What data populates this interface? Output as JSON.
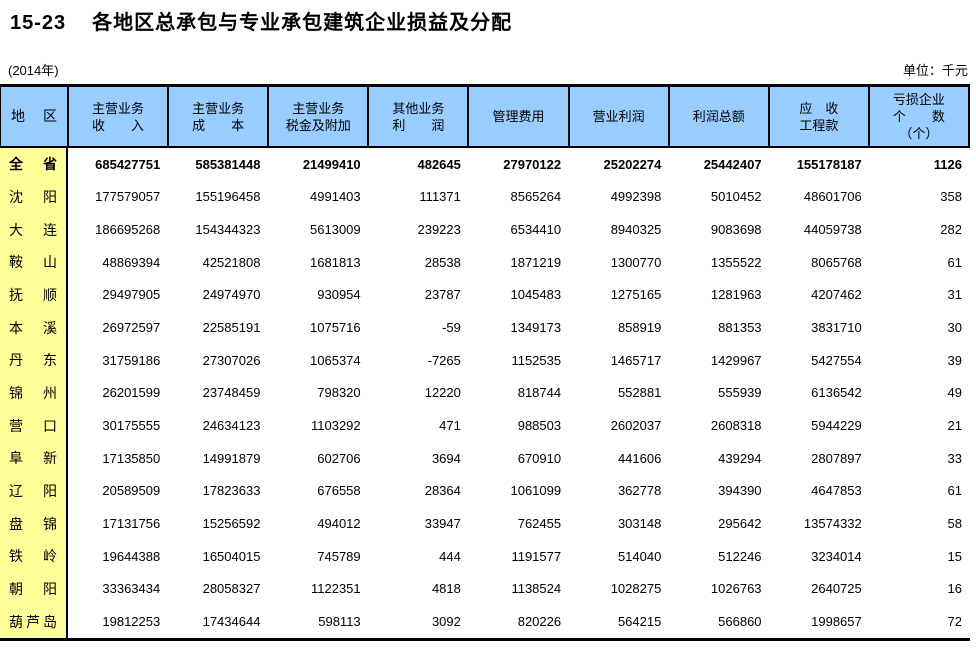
{
  "title": {
    "code": "15-23",
    "text": "各地区总承包与专业承包建筑企业损益及分配"
  },
  "notes": {
    "year": "(2014年)",
    "unit": "单位：千元"
  },
  "colors": {
    "header_bg": "#99CCFF",
    "region_bg": "#FFFF99",
    "rule": "#000000"
  },
  "table": {
    "region_header": "地区",
    "column_headers": [
      [
        "主营业务",
        "收　　入"
      ],
      [
        "主营业务",
        "成　　本"
      ],
      [
        "主营业务",
        "税金及附加"
      ],
      [
        "其他业务",
        "利　　润"
      ],
      [
        "管理费用"
      ],
      [
        "营业利润"
      ],
      [
        "利润总额"
      ],
      [
        "应　收",
        "工程款"
      ],
      [
        "亏损企业",
        "个　　数",
        "（个）"
      ]
    ],
    "rows": [
      {
        "region": "全省",
        "bold": true,
        "values": [
          "685427751",
          "585381448",
          "21499410",
          "482645",
          "27970122",
          "25202274",
          "25442407",
          "155178187",
          "1126"
        ]
      },
      {
        "region": "沈阳",
        "bold": false,
        "values": [
          "177579057",
          "155196458",
          "4991403",
          "111371",
          "8565264",
          "4992398",
          "5010452",
          "48601706",
          "358"
        ]
      },
      {
        "region": "大连",
        "bold": false,
        "values": [
          "186695268",
          "154344323",
          "5613009",
          "239223",
          "6534410",
          "8940325",
          "9083698",
          "44059738",
          "282"
        ]
      },
      {
        "region": "鞍山",
        "bold": false,
        "values": [
          "48869394",
          "42521808",
          "1681813",
          "28538",
          "1871219",
          "1300770",
          "1355522",
          "8065768",
          "61"
        ]
      },
      {
        "region": "抚顺",
        "bold": false,
        "values": [
          "29497905",
          "24974970",
          "930954",
          "23787",
          "1045483",
          "1275165",
          "1281963",
          "4207462",
          "31"
        ]
      },
      {
        "region": "本溪",
        "bold": false,
        "values": [
          "26972597",
          "22585191",
          "1075716",
          "-59",
          "1349173",
          "858919",
          "881353",
          "3831710",
          "30"
        ]
      },
      {
        "region": "丹东",
        "bold": false,
        "values": [
          "31759186",
          "27307026",
          "1065374",
          "-7265",
          "1152535",
          "1465717",
          "1429967",
          "5427554",
          "39"
        ]
      },
      {
        "region": "锦州",
        "bold": false,
        "values": [
          "26201599",
          "23748459",
          "798320",
          "12220",
          "818744",
          "552881",
          "555939",
          "6136542",
          "49"
        ]
      },
      {
        "region": "营口",
        "bold": false,
        "values": [
          "30175555",
          "24634123",
          "1103292",
          "471",
          "988503",
          "2602037",
          "2608318",
          "5944229",
          "21"
        ]
      },
      {
        "region": "阜新",
        "bold": false,
        "values": [
          "17135850",
          "14991879",
          "602706",
          "3694",
          "670910",
          "441606",
          "439294",
          "2807897",
          "33"
        ]
      },
      {
        "region": "辽阳",
        "bold": false,
        "values": [
          "20589509",
          "17823633",
          "676558",
          "28364",
          "1061099",
          "362778",
          "394390",
          "4647853",
          "61"
        ]
      },
      {
        "region": "盘锦",
        "bold": false,
        "values": [
          "17131756",
          "15256592",
          "494012",
          "33947",
          "762455",
          "303148",
          "295642",
          "13574332",
          "58"
        ]
      },
      {
        "region": "铁岭",
        "bold": false,
        "values": [
          "19644388",
          "16504015",
          "745789",
          "444",
          "1191577",
          "514040",
          "512246",
          "3234014",
          "15"
        ]
      },
      {
        "region": "朝阳",
        "bold": false,
        "values": [
          "33363434",
          "28058327",
          "1122351",
          "4818",
          "1138524",
          "1028275",
          "1026763",
          "2640725",
          "16"
        ]
      },
      {
        "region": "葫芦岛",
        "bold": false,
        "values": [
          "19812253",
          "17434644",
          "598113",
          "3092",
          "820226",
          "564215",
          "566860",
          "1998657",
          "72"
        ]
      }
    ]
  }
}
